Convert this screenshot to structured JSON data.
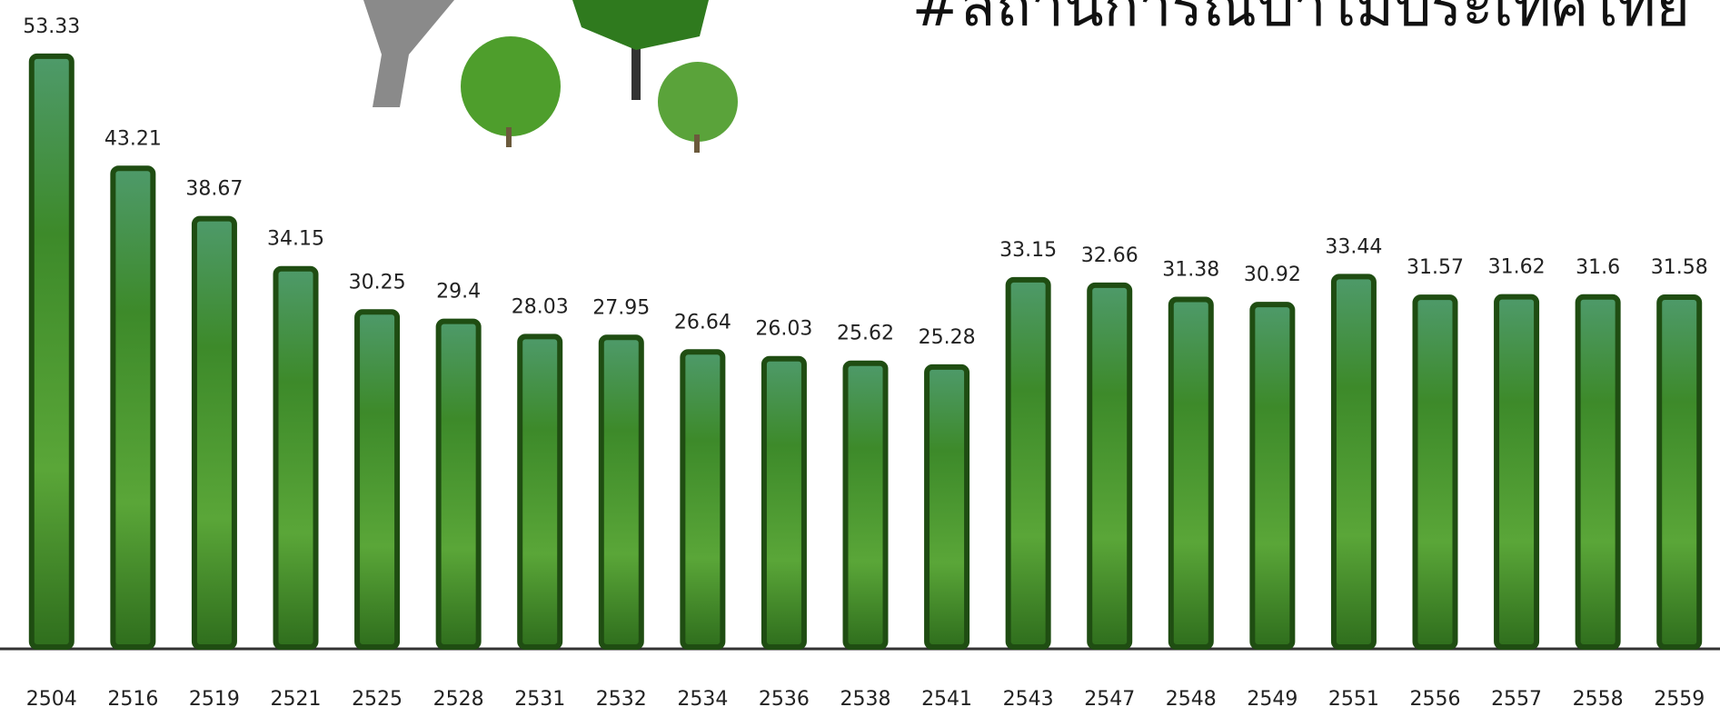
{
  "chart_data": {
    "type": "bar",
    "title": "#สถานการณ์ป่าไม้ประเทศไทย",
    "categories": [
      "2504",
      "2516",
      "2519",
      "2521",
      "2525",
      "2528",
      "2531",
      "2532",
      "2534",
      "2536",
      "2538",
      "2541",
      "2543",
      "2547",
      "2548",
      "2549",
      "2551",
      "2556",
      "2557",
      "2558",
      "2559"
    ],
    "values": [
      53.33,
      43.21,
      38.67,
      34.15,
      30.25,
      29.4,
      28.03,
      27.95,
      26.64,
      26.03,
      25.62,
      25.28,
      33.15,
      32.66,
      31.38,
      30.92,
      33.44,
      31.57,
      31.62,
      31.6,
      31.58
    ],
    "color": "#3f8f2a",
    "ylim": [
      0,
      58
    ]
  }
}
